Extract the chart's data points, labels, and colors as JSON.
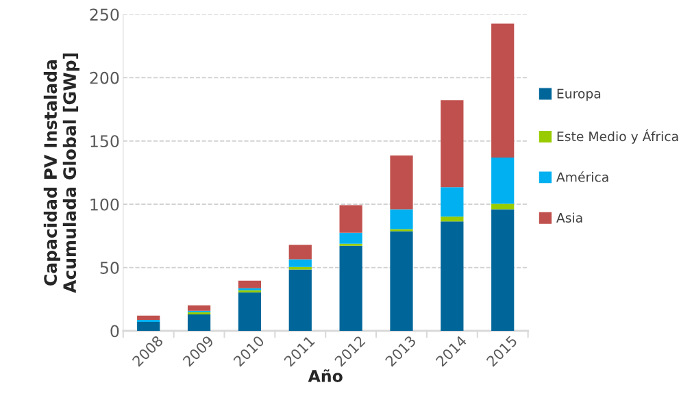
{
  "chart_data": {
    "type": "bar",
    "stacked": true,
    "xlabel": "Año",
    "ylabel": "Capacidad PV Instalada\nAcumulada Global [GWp]",
    "categories": [
      "2008",
      "2009",
      "2010",
      "2011",
      "2012",
      "2013",
      "2014",
      "2015"
    ],
    "series": [
      {
        "name": "Europa",
        "color": "#006699",
        "values": [
          7.1,
          13.0,
          30.4,
          48.4,
          67.3,
          78.7,
          86.4,
          96.0
        ]
      },
      {
        "name": "Este Medio y África",
        "color": "#99cc00",
        "values": [
          null,
          1.7,
          1.7,
          2.1,
          1.6,
          1.7,
          3.8,
          4.4
        ]
      },
      {
        "name": "América",
        "color": "#00b0f0",
        "values": [
          1.6,
          1.1,
          1.6,
          6.0,
          8.6,
          15.6,
          23.3,
          36.5
        ]
      },
      {
        "name": "Asia",
        "color": "#c0504d",
        "values": [
          3.3,
          4.3,
          6.0,
          11.4,
          21.8,
          42.5,
          68.7,
          105.8
        ]
      }
    ],
    "ylim": [
      0,
      250
    ],
    "yticks": [
      0,
      50,
      100,
      150,
      200,
      250
    ],
    "grid": "y",
    "legend": "right"
  }
}
